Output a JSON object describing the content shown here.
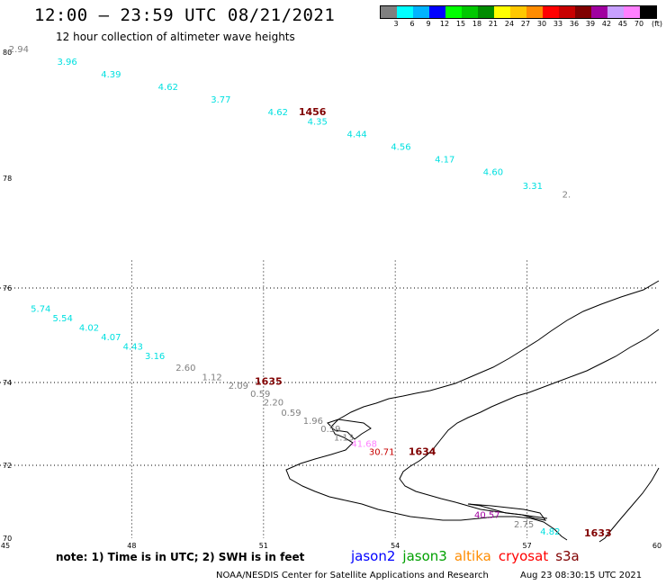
{
  "header": {
    "title": "12:00 – 23:59 UTC 08/21/2021",
    "subtitle": "12 hour collection of altimeter wave heights"
  },
  "legend": {
    "colors": [
      "#808080",
      "#00ffff",
      "#00b4ff",
      "#0000ff",
      "#00ff00",
      "#00c800",
      "#008c00",
      "#ffff00",
      "#ffc800",
      "#ff8c00",
      "#ff0000",
      "#c80000",
      "#800000",
      "#a000a0",
      "#c8a0ff",
      "#ff80ff",
      "#000000"
    ],
    "labels": [
      "3",
      "6",
      "9",
      "12",
      "15",
      "18",
      "21",
      "24",
      "27",
      "30",
      "33",
      "36",
      "39",
      "42",
      "45",
      "70",
      "(ft)"
    ]
  },
  "axes": {
    "x_ticks": [
      "45",
      "48",
      "51",
      "54",
      "57",
      "60"
    ],
    "y_ticks": [
      "70",
      "72",
      "74",
      "76",
      "78",
      "80"
    ]
  },
  "tracks": [
    {
      "color": "#808080",
      "items": [
        {
          "text": "2.94",
          "lon": 45.2,
          "lat": 80.0
        }
      ]
    },
    {
      "color": "#00e0e0",
      "items": [
        {
          "text": "3.96",
          "lon": 46.3,
          "lat": 79.8
        },
        {
          "text": "4.39",
          "lon": 47.3,
          "lat": 79.6
        },
        {
          "text": "4.62",
          "lon": 48.6,
          "lat": 79.4
        },
        {
          "text": "3.77",
          "lon": 49.8,
          "lat": 79.2
        },
        {
          "text": "4.62",
          "lon": 51.1,
          "lat": 79.0
        },
        {
          "text": "4.35",
          "lon": 52.0,
          "lat": 78.85
        },
        {
          "text": "4.44",
          "lon": 52.9,
          "lat": 78.65
        },
        {
          "text": "4.56",
          "lon": 53.9,
          "lat": 78.45
        },
        {
          "text": "4.17",
          "lon": 54.9,
          "lat": 78.25
        },
        {
          "text": "4.60",
          "lon": 56.0,
          "lat": 78.05
        },
        {
          "text": "3.31",
          "lon": 56.9,
          "lat": 77.8
        }
      ]
    },
    {
      "color": "#808080",
      "items": [
        {
          "text": "2.",
          "lon": 57.8,
          "lat": 77.65
        }
      ]
    },
    {
      "color": "#00e0e0",
      "items": [
        {
          "text": "5.74",
          "lon": 45.7,
          "lat": 75.5
        },
        {
          "text": "5.54",
          "lon": 46.2,
          "lat": 75.3
        },
        {
          "text": "4.02",
          "lon": 46.8,
          "lat": 75.1
        },
        {
          "text": "4.07",
          "lon": 47.3,
          "lat": 74.9
        },
        {
          "text": "4.43",
          "lon": 47.8,
          "lat": 74.7
        },
        {
          "text": "3.16",
          "lon": 48.3,
          "lat": 74.5
        }
      ]
    },
    {
      "color": "#808080",
      "items": [
        {
          "text": "2.60",
          "lon": 49.0,
          "lat": 74.25
        },
        {
          "text": "1.12",
          "lon": 49.6,
          "lat": 74.05
        },
        {
          "text": "2.09",
          "lon": 50.2,
          "lat": 73.85
        },
        {
          "text": "0.59",
          "lon": 50.7,
          "lat": 73.65
        },
        {
          "text": "2.20",
          "lon": 51.0,
          "lat": 73.45
        },
        {
          "text": "0.59",
          "lon": 51.4,
          "lat": 73.2
        },
        {
          "text": "1.96",
          "lon": 51.9,
          "lat": 73.0
        },
        {
          "text": "0.59",
          "lon": 52.3,
          "lat": 72.8
        },
        {
          "text": "1.13",
          "lon": 52.6,
          "lat": 72.6
        }
      ]
    },
    {
      "color": "#ff80ff",
      "items": [
        {
          "text": "41.68",
          "lon": 53.0,
          "lat": 72.45
        }
      ]
    },
    {
      "color": "#c80000",
      "items": [
        {
          "text": "30.71",
          "lon": 53.4,
          "lat": 72.25
        }
      ]
    },
    {
      "color": "#a000a0",
      "items": [
        {
          "text": "40.57",
          "lon": 55.8,
          "lat": 70.55
        }
      ]
    },
    {
      "color": "#808080",
      "items": [
        {
          "text": "2.75",
          "lon": 56.7,
          "lat": 70.3
        }
      ]
    },
    {
      "color": "#00e0e0",
      "items": [
        {
          "text": "4.82",
          "lon": 57.3,
          "lat": 70.1
        }
      ]
    }
  ],
  "times": [
    {
      "text": "1456",
      "lon": 51.8,
      "lat": 79.0
    },
    {
      "text": "1635",
      "lon": 50.8,
      "lat": 73.95
    },
    {
      "text": "1634",
      "lon": 54.3,
      "lat": 72.25
    },
    {
      "text": "1633",
      "lon": 58.3,
      "lat": 70.05
    }
  ],
  "footer": {
    "note": "note:  1) Time is in UTC;  2) SWH is in feet",
    "satellites": [
      {
        "name": "jason2",
        "color": "#0000ff"
      },
      {
        "name": "jason3",
        "color": "#00a000"
      },
      {
        "name": "altika",
        "color": "#ff8c00"
      },
      {
        "name": "cryosat",
        "color": "#ff0000"
      },
      {
        "name": "s3a",
        "color": "#800000"
      }
    ],
    "credit": "NOAA/NESDIS Center for Satellite Applications and Research",
    "timestamp": "Aug 23 08:30:15 UTC 2021"
  }
}
